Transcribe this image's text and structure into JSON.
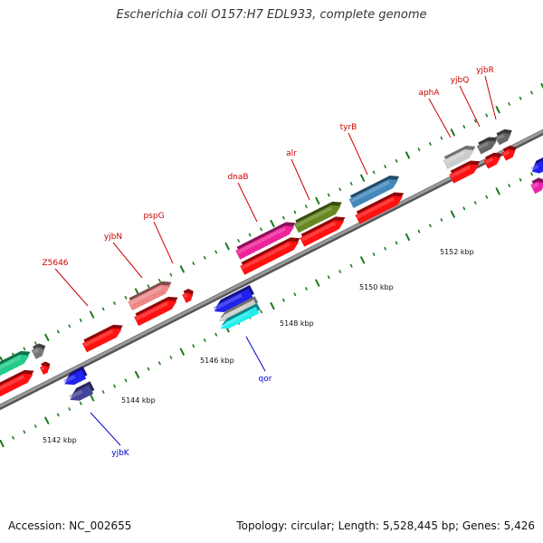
{
  "title": "Escherichia coli O157:H7 EDL933, complete genome",
  "footer": {
    "accession": "Accession: NC_002655",
    "summary": "Topology: circular; Length: 5,528,445 bp; Genes: 5,426"
  },
  "axis": {
    "labels": [
      "5142 kbp",
      "5144 kbp",
      "5146 kbp",
      "5148 kbp",
      "5150 kbp",
      "5152 kbp"
    ],
    "tick_color": "#1a7a1a"
  },
  "colors": {
    "label_forward": "#cc0000",
    "label_reverse": "#0000cc",
    "backbone": "#888888"
  },
  "features": [
    {
      "name": "",
      "strand": "forward",
      "color": "#22cc88"
    },
    {
      "name": "",
      "strand": "forward",
      "color": "#777777"
    },
    {
      "name": "",
      "strand": "forward",
      "color": "#ff1111"
    },
    {
      "name": "Z5646",
      "strand": "forward",
      "color": "#ff1111"
    },
    {
      "name": "yjbN",
      "strand": "forward",
      "color": "#ee8888"
    },
    {
      "name": "",
      "strand": "forward",
      "color": "#ff1111"
    },
    {
      "name": "pspG",
      "strand": "forward",
      "color": "#ff1111"
    },
    {
      "name": "dnaB",
      "strand": "forward",
      "color": "#ee2299"
    },
    {
      "name": "",
      "strand": "forward",
      "color": "#ff1111"
    },
    {
      "name": "alr",
      "strand": "forward",
      "color": "#668822"
    },
    {
      "name": "",
      "strand": "forward",
      "color": "#ff1111"
    },
    {
      "name": "tyrB",
      "strand": "forward",
      "color": "#4488bb"
    },
    {
      "name": "",
      "strand": "forward",
      "color": "#ff1111"
    },
    {
      "name": "aphA",
      "strand": "forward",
      "color": "#cccccc"
    },
    {
      "name": "",
      "strand": "forward",
      "color": "#ff1111"
    },
    {
      "name": "yjbQ",
      "strand": "forward",
      "color": "#666666"
    },
    {
      "name": "",
      "strand": "forward",
      "color": "#ff1111"
    },
    {
      "name": "yjbR",
      "strand": "forward",
      "color": "#666666"
    },
    {
      "name": "",
      "strand": "forward",
      "color": "#ff1111"
    },
    {
      "name": "yjbK",
      "strand": "reverse",
      "color": "#2222ee"
    },
    {
      "name": "",
      "strand": "reverse",
      "color": "#444499"
    },
    {
      "name": "qor",
      "strand": "reverse",
      "color": "#2222ee"
    },
    {
      "name": "",
      "strand": "reverse",
      "color": "#cccccc"
    },
    {
      "name": "",
      "strand": "reverse",
      "color": "#22eeee"
    },
    {
      "name": "",
      "strand": "reverse",
      "color": "#2222ee"
    },
    {
      "name": "",
      "strand": "forward",
      "color": "#ee22aa"
    }
  ]
}
